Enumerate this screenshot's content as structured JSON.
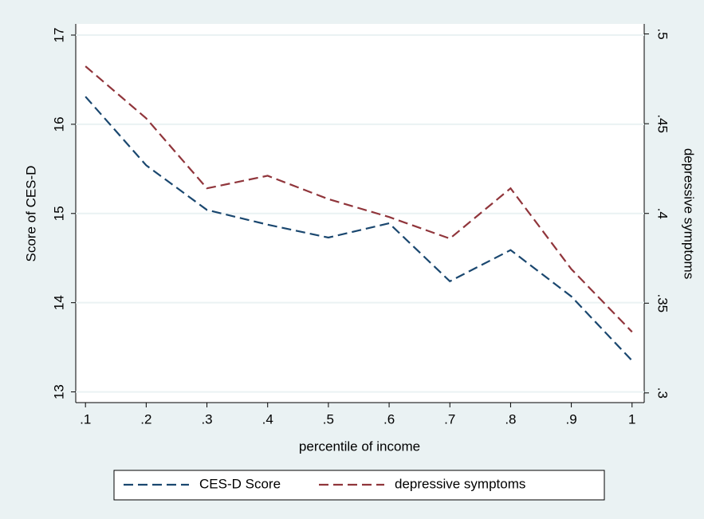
{
  "chart_data": {
    "type": "line",
    "x_label": "percentile of income",
    "y_label": "Score of CES-D",
    "y2_label": "depressive symptoms",
    "x": [
      0.1,
      0.2,
      0.3,
      0.4,
      0.5,
      0.6,
      0.7,
      0.8,
      0.9,
      1
    ],
    "xlim": [
      0.084,
      1.02
    ],
    "xticks": [
      {
        "value": 0.1,
        "label": ".1"
      },
      {
        "value": 0.2,
        "label": ".2"
      },
      {
        "value": 0.3,
        "label": ".3"
      },
      {
        "value": 0.4,
        "label": ".4"
      },
      {
        "value": 0.5,
        "label": ".5"
      },
      {
        "value": 0.6,
        "label": ".6"
      },
      {
        "value": 0.7,
        "label": ".7"
      },
      {
        "value": 0.8,
        "label": ".8"
      },
      {
        "value": 0.9,
        "label": ".9"
      },
      1
    ],
    "ylim": [
      12.88,
      17.125
    ],
    "yticks": [
      13,
      14,
      15,
      16,
      17
    ],
    "y2lim": [
      0.2946,
      0.5056
    ],
    "y2ticks": [
      {
        "value": 0.3,
        "label": ".3"
      },
      {
        "value": 0.35,
        "label": ".35"
      },
      {
        "value": 0.4,
        "label": ".4"
      },
      {
        "value": 0.45,
        "label": ".45"
      },
      {
        "value": 0.5,
        "label": ".5"
      }
    ],
    "grid": true,
    "legend": "bottom",
    "series": [
      {
        "name": "CES-D Score",
        "color": "#1a476f",
        "values": [
          16.31,
          15.54,
          15.04,
          14.875,
          14.73,
          14.89,
          14.24,
          14.59,
          14.07,
          13.35
        ]
      },
      {
        "name": "depressive symptoms",
        "color": "#90353b",
        "axis": "y2",
        "values": [
          0.482,
          0.453,
          0.414,
          0.421,
          0.408,
          0.398,
          0.386,
          0.414,
          0.369,
          0.334
        ]
      }
    ]
  }
}
